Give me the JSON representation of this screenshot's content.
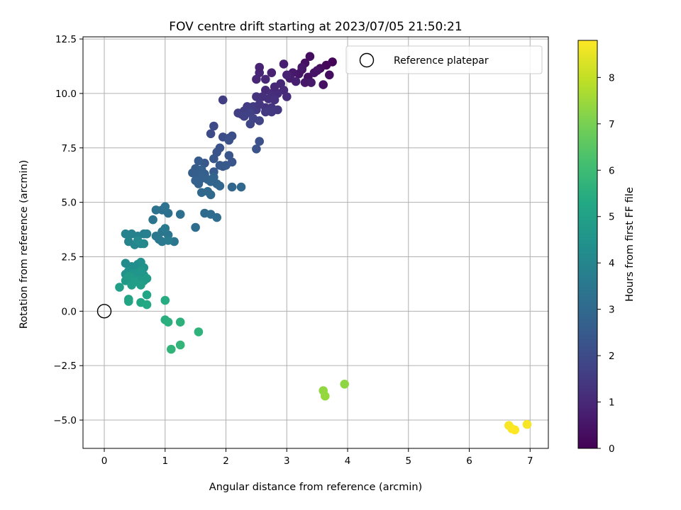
{
  "chart_data": {
    "type": "scatter",
    "title": "FOV centre drift starting at 2023/07/05 21:50:21",
    "xlabel": "Angular distance from reference (arcmin)",
    "ylabel": "Rotation from reference (arcmin)",
    "xlim": [
      -0.35,
      7.3
    ],
    "ylim": [
      -6.3,
      12.6
    ],
    "xticks": [
      0,
      1,
      2,
      3,
      4,
      5,
      6,
      7
    ],
    "xtick_labels": [
      "0",
      "1",
      "2",
      "3",
      "4",
      "5",
      "6",
      "7"
    ],
    "yticks": [
      -5.0,
      -2.5,
      0.0,
      2.5,
      5.0,
      7.5,
      10.0,
      12.5
    ],
    "ytick_labels": [
      "−5.0",
      "−2.5",
      "0.0",
      "2.5",
      "5.0",
      "7.5",
      "10.0",
      "12.5"
    ],
    "grid": true,
    "legend": {
      "position": "top-right",
      "entries": [
        "Reference platepar"
      ]
    },
    "reference_point": {
      "x": 0,
      "y": 0,
      "label": "Reference platepar"
    },
    "colorbar": {
      "label": "Hours from first FF file",
      "colormap": "viridis",
      "range": [
        0,
        8.8
      ],
      "ticks": [
        0,
        1,
        2,
        3,
        4,
        5,
        6,
        7,
        8
      ],
      "tick_labels": [
        "0",
        "1",
        "2",
        "3",
        "4",
        "5",
        "6",
        "7",
        "8"
      ]
    },
    "points": [
      [
        3.75,
        11.45,
        0.1
      ],
      [
        3.65,
        11.3,
        0.15
      ],
      [
        3.55,
        11.15,
        0.25
      ],
      [
        3.38,
        11.7,
        0.3
      ],
      [
        3.7,
        10.85,
        0.3
      ],
      [
        3.6,
        10.4,
        0.4
      ],
      [
        3.3,
        11.4,
        0.35
      ],
      [
        3.25,
        11.1,
        0.45
      ],
      [
        3.2,
        10.9,
        0.5
      ],
      [
        3.35,
        10.75,
        0.4
      ],
      [
        3.45,
        10.95,
        0.5
      ],
      [
        3.3,
        10.5,
        0.55
      ],
      [
        3.1,
        10.95,
        0.6
      ],
      [
        3.05,
        10.7,
        0.7
      ],
      [
        3.15,
        10.55,
        0.75
      ],
      [
        3.4,
        10.5,
        0.6
      ],
      [
        3.25,
        11.2,
        0.55
      ],
      [
        2.95,
        11.35,
        0.75
      ],
      [
        2.75,
        10.95,
        0.8
      ],
      [
        2.55,
        10.95,
        0.9
      ],
      [
        2.5,
        10.65,
        0.95
      ],
      [
        2.55,
        11.2,
        0.85
      ],
      [
        3.0,
        10.85,
        0.85
      ],
      [
        3.5,
        11.05,
        0.45
      ],
      [
        2.65,
        10.65,
        0.95
      ],
      [
        2.9,
        10.45,
        1.0
      ],
      [
        2.95,
        10.15,
        1.05
      ],
      [
        3.0,
        9.85,
        1.1
      ],
      [
        2.85,
        10.0,
        1.1
      ],
      [
        2.65,
        10.15,
        1.05
      ],
      [
        2.75,
        10.0,
        1.15
      ],
      [
        2.7,
        9.75,
        1.2
      ],
      [
        2.6,
        9.85,
        1.2
      ],
      [
        2.8,
        9.7,
        1.25
      ],
      [
        2.5,
        9.85,
        1.3
      ],
      [
        2.65,
        9.35,
        1.3
      ],
      [
        2.75,
        9.35,
        1.35
      ],
      [
        2.85,
        9.25,
        1.4
      ],
      [
        2.75,
        9.15,
        1.45
      ],
      [
        2.65,
        9.15,
        1.45
      ],
      [
        2.5,
        9.25,
        1.5
      ],
      [
        2.45,
        9.4,
        1.5
      ],
      [
        2.35,
        9.4,
        1.55
      ],
      [
        2.3,
        9.2,
        1.6
      ],
      [
        2.25,
        9.05,
        1.6
      ],
      [
        2.2,
        9.1,
        1.65
      ],
      [
        2.3,
        8.95,
        1.7
      ],
      [
        2.4,
        9.1,
        1.7
      ],
      [
        2.45,
        8.85,
        1.75
      ],
      [
        2.55,
        8.75,
        1.75
      ],
      [
        2.4,
        8.6,
        1.8
      ],
      [
        1.95,
        9.7,
        1.6
      ],
      [
        2.55,
        9.5,
        1.4
      ],
      [
        2.8,
        10.3,
        1.0
      ],
      [
        1.8,
        8.5,
        1.95
      ],
      [
        1.75,
        8.15,
        2.0
      ],
      [
        1.95,
        8.0,
        2.05
      ],
      [
        2.05,
        7.95,
        2.1
      ],
      [
        2.1,
        8.05,
        2.1
      ],
      [
        2.05,
        7.85,
        2.15
      ],
      [
        2.55,
        7.8,
        2.15
      ],
      [
        2.5,
        7.45,
        2.2
      ],
      [
        1.9,
        7.5,
        2.2
      ],
      [
        1.85,
        7.3,
        2.25
      ],
      [
        2.05,
        7.15,
        2.3
      ],
      [
        2.1,
        6.85,
        2.3
      ],
      [
        1.8,
        7.0,
        2.35
      ],
      [
        1.65,
        6.8,
        2.4
      ],
      [
        1.9,
        6.7,
        2.4
      ],
      [
        1.95,
        6.65,
        2.45
      ],
      [
        2.0,
        6.7,
        2.45
      ],
      [
        1.8,
        6.4,
        2.5
      ],
      [
        1.55,
        6.9,
        2.5
      ],
      [
        1.5,
        6.55,
        2.55
      ],
      [
        1.45,
        6.35,
        2.6
      ],
      [
        1.55,
        6.2,
        2.6
      ],
      [
        1.6,
        6.5,
        2.65
      ],
      [
        1.65,
        6.3,
        2.65
      ],
      [
        1.6,
        6.1,
        2.7
      ],
      [
        1.5,
        6.0,
        2.7
      ],
      [
        1.55,
        5.85,
        2.75
      ],
      [
        1.7,
        6.05,
        2.75
      ],
      [
        1.8,
        6.15,
        2.8
      ],
      [
        1.75,
        5.95,
        2.85
      ],
      [
        1.85,
        5.85,
        2.85
      ],
      [
        1.9,
        5.75,
        2.9
      ],
      [
        2.1,
        5.7,
        2.9
      ],
      [
        2.25,
        5.7,
        2.95
      ],
      [
        1.6,
        5.45,
        2.95
      ],
      [
        1.7,
        5.5,
        3.0
      ],
      [
        1.75,
        5.35,
        3.0
      ],
      [
        1.65,
        4.5,
        3.05
      ],
      [
        1.75,
        4.45,
        3.1
      ],
      [
        1.85,
        4.3,
        3.1
      ],
      [
        1.5,
        3.85,
        3.15
      ],
      [
        1.25,
        4.45,
        3.2
      ],
      [
        1.05,
        4.5,
        3.25
      ],
      [
        0.95,
        4.65,
        3.25
      ],
      [
        1.0,
        4.8,
        3.3
      ],
      [
        0.85,
        4.65,
        3.3
      ],
      [
        0.8,
        4.2,
        3.35
      ],
      [
        1.15,
        3.2,
        3.4
      ],
      [
        1.05,
        3.5,
        3.4
      ],
      [
        0.95,
        3.65,
        3.45
      ],
      [
        0.85,
        3.45,
        3.5
      ],
      [
        0.9,
        3.3,
        3.55
      ],
      [
        0.95,
        3.2,
        3.55
      ],
      [
        1.0,
        3.8,
        3.6
      ],
      [
        1.05,
        3.25,
        3.65
      ],
      [
        0.65,
        3.55,
        3.7
      ],
      [
        0.7,
        3.55,
        3.75
      ],
      [
        0.55,
        3.45,
        3.8
      ],
      [
        0.45,
        3.55,
        3.85
      ],
      [
        0.35,
        3.55,
        3.9
      ],
      [
        0.4,
        3.2,
        3.95
      ],
      [
        0.5,
        3.05,
        4.0
      ],
      [
        0.6,
        3.1,
        4.05
      ],
      [
        0.65,
        3.1,
        4.1
      ],
      [
        0.55,
        3.25,
        4.15
      ],
      [
        0.35,
        2.2,
        4.2
      ],
      [
        0.45,
        2.05,
        4.25
      ],
      [
        0.5,
        1.9,
        4.3
      ],
      [
        0.55,
        2.15,
        4.3
      ],
      [
        0.6,
        2.25,
        4.35
      ],
      [
        0.65,
        2.0,
        4.4
      ],
      [
        0.4,
        1.85,
        4.4
      ],
      [
        0.35,
        1.7,
        4.45
      ],
      [
        0.5,
        1.75,
        4.5
      ],
      [
        0.55,
        1.6,
        4.5
      ],
      [
        0.65,
        1.65,
        4.55
      ],
      [
        0.6,
        1.85,
        4.6
      ],
      [
        0.45,
        1.55,
        4.65
      ],
      [
        0.35,
        1.4,
        4.7
      ],
      [
        0.55,
        1.45,
        4.7
      ],
      [
        0.65,
        1.4,
        4.75
      ],
      [
        0.7,
        1.5,
        4.8
      ],
      [
        0.4,
        1.6,
        4.8
      ],
      [
        0.5,
        1.35,
        4.85
      ],
      [
        0.6,
        1.2,
        4.9
      ],
      [
        0.45,
        1.2,
        4.9
      ],
      [
        0.25,
        1.1,
        4.95
      ],
      [
        0.4,
        0.55,
        5.1
      ],
      [
        0.4,
        0.45,
        5.15
      ],
      [
        0.7,
        0.75,
        5.2
      ],
      [
        0.6,
        0.4,
        5.25
      ],
      [
        0.7,
        0.3,
        5.3
      ],
      [
        1.0,
        0.5,
        5.4
      ],
      [
        1.0,
        -0.4,
        5.5
      ],
      [
        1.05,
        -0.5,
        5.55
      ],
      [
        1.25,
        -0.5,
        5.6
      ],
      [
        1.55,
        -0.95,
        5.65
      ],
      [
        1.1,
        -1.75,
        5.7
      ],
      [
        1.25,
        -1.55,
        5.75
      ],
      [
        3.6,
        -3.65,
        7.35
      ],
      [
        3.63,
        -3.9,
        7.4
      ],
      [
        3.95,
        -3.35,
        7.3
      ],
      [
        6.65,
        -5.25,
        8.7
      ],
      [
        6.7,
        -5.4,
        8.75
      ],
      [
        6.75,
        -5.45,
        8.8
      ],
      [
        6.95,
        -5.2,
        8.7
      ]
    ]
  }
}
